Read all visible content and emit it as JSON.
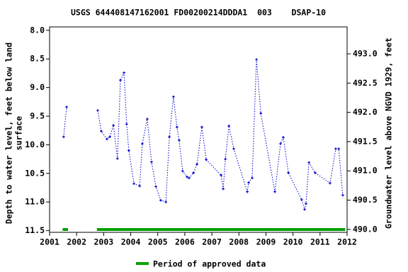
{
  "chart_data": {
    "type": "line",
    "title": "USGS 644408147162001 FD00200214DDDA1  003    DSAP-10",
    "y_label": [
      "Depth to water level, feet below land",
      "surface"
    ],
    "y2_label": "Groundwater level above NGVD 1929, feet",
    "xlim": [
      2001,
      2012
    ],
    "xticks": [
      2001,
      2002,
      2003,
      2004,
      2005,
      2006,
      2007,
      2008,
      2009,
      2010,
      2011,
      2012
    ],
    "ylim": [
      7.94,
      11.53
    ],
    "y_inverted": true,
    "yticks": [
      {
        "value": 8,
        "label": "8.0"
      },
      {
        "value": 8.5,
        "label": "8.5"
      },
      {
        "value": 9,
        "label": "9.0"
      },
      {
        "value": 9.5,
        "label": "9.5"
      },
      {
        "value": 10,
        "label": "10.0"
      },
      {
        "value": 10.5,
        "label": "10.5"
      },
      {
        "value": 11,
        "label": "11.0"
      },
      {
        "value": 11.5,
        "label": "11.5"
      }
    ],
    "y2lim": [
      489.95,
      493.46
    ],
    "y2ticks": [
      {
        "value": 490,
        "label": "490.0"
      },
      {
        "value": 490.5,
        "label": "490.5"
      },
      {
        "value": 491,
        "label": "491.0"
      },
      {
        "value": 491.5,
        "label": "491.5"
      },
      {
        "value": 492,
        "label": "492.0"
      },
      {
        "value": 492.5,
        "label": "492.5"
      },
      {
        "value": 493,
        "label": "493.0"
      }
    ],
    "x": [
      2001.52,
      2001.63,
      null,
      2002.78,
      2002.91,
      2003.12,
      2003.23,
      2003.36,
      2003.51,
      2003.62,
      2003.75,
      2003.85,
      2003.93,
      2004.12,
      2004.33,
      2004.43,
      2004.61,
      2004.77,
      2004.93,
      2005.11,
      2005.3,
      2005.43,
      2005.58,
      2005.71,
      2005.79,
      2005.92,
      2006.08,
      2006.16,
      2006.32,
      2006.45,
      2006.63,
      2006.79,
      2007.34,
      2007.42,
      2007.5,
      2007.63,
      2007.81,
      2008.31,
      2008.36,
      2008.49,
      2008.65,
      2008.81,
      2009.33,
      2009.54,
      2009.64,
      2009.83,
      2010.32,
      2010.43,
      2010.48,
      2010.59,
      2010.82,
      2011.37,
      2011.58,
      2011.69,
      2011.84
    ],
    "series": [
      {
        "color": "#0000cc",
        "values": [
          9.86,
          9.34,
          null,
          9.4,
          9.76,
          9.9,
          9.86,
          9.66,
          10.24,
          8.87,
          8.74,
          9.64,
          10.1,
          10.68,
          10.72,
          9.98,
          9.55,
          10.3,
          10.73,
          10.97,
          11.0,
          9.86,
          9.16,
          9.69,
          9.92,
          10.46,
          10.56,
          10.58,
          10.49,
          10.34,
          9.69,
          10.26,
          10.53,
          10.77,
          10.25,
          9.67,
          10.07,
          10.82,
          10.66,
          10.58,
          8.51,
          9.45,
          10.82,
          9.98,
          9.87,
          10.49,
          10.96,
          11.13,
          11.03,
          10.31,
          10.49,
          10.67,
          10.07,
          10.07,
          10.88
        ]
      }
    ],
    "approved_periods": [
      {
        "start": 2001.48,
        "end": 2001.68
      },
      {
        "start": 2002.75,
        "end": 2011.93
      }
    ],
    "approved_color": "#00a000",
    "approved_label": "Period of approved data"
  }
}
